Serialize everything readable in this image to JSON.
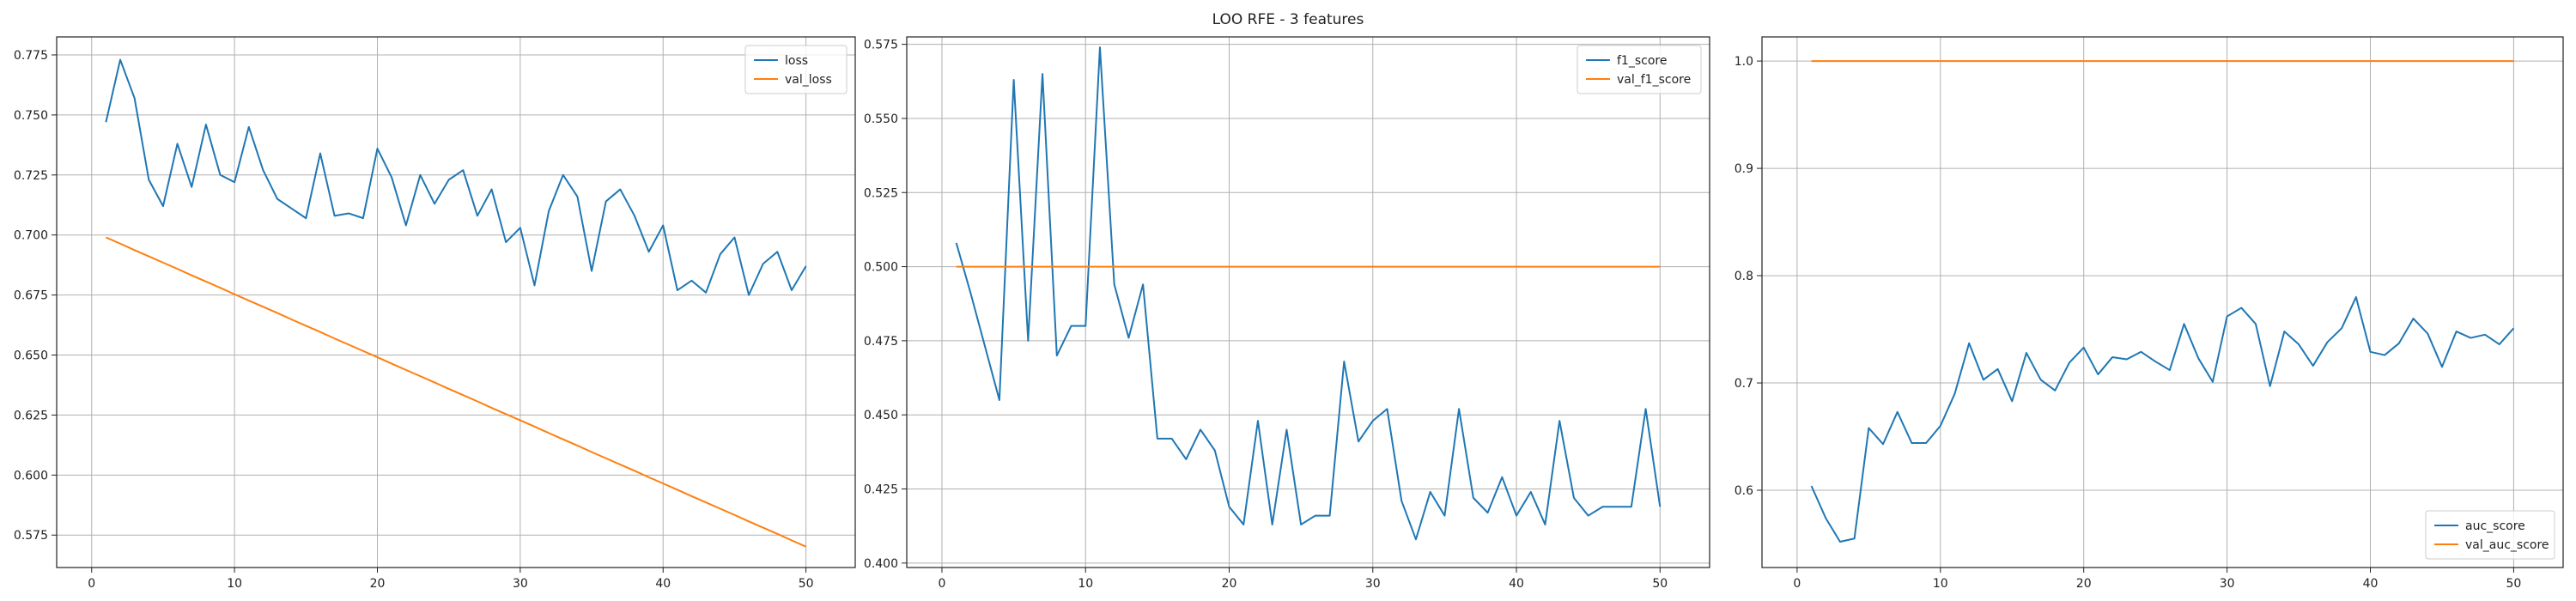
{
  "figure": {
    "title": "LOO RFE - 3 features"
  },
  "colors": {
    "train": "#1f77b4",
    "val": "#ff7f0e",
    "grid": "#b0b0b0",
    "axes": "#222222"
  },
  "chart_data": [
    {
      "type": "line",
      "grid": true,
      "legend_position": "top-right",
      "xlim": [
        -2.45,
        53.45
      ],
      "ylim": [
        0.5615,
        0.7825
      ],
      "xticks": [
        0,
        10,
        20,
        30,
        40,
        50
      ],
      "yticks": [
        0.575,
        0.6,
        0.625,
        0.65,
        0.675,
        0.7,
        0.725,
        0.75,
        0.775
      ],
      "ytick_labels": [
        "0.575",
        "0.600",
        "0.625",
        "0.650",
        "0.675",
        "0.700",
        "0.725",
        "0.750",
        "0.775"
      ],
      "series": [
        {
          "name": "loss",
          "color_key": "train",
          "x": [
            1,
            2,
            3,
            4,
            5,
            6,
            7,
            8,
            9,
            10,
            11,
            12,
            13,
            14,
            15,
            16,
            17,
            18,
            19,
            20,
            21,
            22,
            23,
            24,
            25,
            26,
            27,
            28,
            29,
            30,
            31,
            32,
            33,
            34,
            35,
            36,
            37,
            38,
            39,
            40,
            41,
            42,
            43,
            44,
            45,
            46,
            47,
            48,
            49,
            50
          ],
          "values": [
            0.747,
            0.773,
            0.757,
            0.723,
            0.712,
            0.738,
            0.72,
            0.746,
            0.725,
            0.722,
            0.745,
            0.727,
            0.715,
            0.711,
            0.707,
            0.734,
            0.708,
            0.709,
            0.707,
            0.736,
            0.724,
            0.704,
            0.725,
            0.713,
            0.723,
            0.727,
            0.708,
            0.719,
            0.697,
            0.703,
            0.679,
            0.71,
            0.725,
            0.716,
            0.685,
            0.714,
            0.719,
            0.708,
            0.693,
            0.704,
            0.677,
            0.681,
            0.676,
            0.692,
            0.699,
            0.675,
            0.688,
            0.693,
            0.677,
            0.687
          ]
        },
        {
          "name": "val_loss",
          "color_key": "val",
          "x": [
            1,
            2,
            3,
            4,
            5,
            6,
            7,
            8,
            9,
            10,
            11,
            12,
            13,
            14,
            15,
            16,
            17,
            18,
            19,
            20,
            21,
            22,
            23,
            24,
            25,
            26,
            27,
            28,
            29,
            30,
            31,
            32,
            33,
            34,
            35,
            36,
            37,
            38,
            39,
            40,
            41,
            42,
            43,
            44,
            45,
            46,
            47,
            48,
            49,
            50
          ],
          "values": [
            0.699,
            0.6964,
            0.6937,
            0.6911,
            0.6885,
            0.6859,
            0.6832,
            0.6806,
            0.678,
            0.6753,
            0.6727,
            0.6701,
            0.6675,
            0.6648,
            0.6622,
            0.6596,
            0.6569,
            0.6543,
            0.6517,
            0.6491,
            0.6464,
            0.6438,
            0.6412,
            0.6386,
            0.6359,
            0.6333,
            0.6307,
            0.628,
            0.6254,
            0.6228,
            0.6202,
            0.6175,
            0.6149,
            0.6123,
            0.6096,
            0.607,
            0.6044,
            0.6018,
            0.5991,
            0.5965,
            0.5939,
            0.5912,
            0.5886,
            0.586,
            0.5834,
            0.5807,
            0.5781,
            0.5755,
            0.5728,
            0.5702
          ]
        }
      ]
    },
    {
      "type": "line",
      "grid": true,
      "legend_position": "top-right",
      "xlim": [
        -2.45,
        53.45
      ],
      "ylim": [
        0.3985,
        0.5775
      ],
      "xticks": [
        0,
        10,
        20,
        30,
        40,
        50
      ],
      "yticks": [
        0.4,
        0.425,
        0.45,
        0.475,
        0.5,
        0.525,
        0.55,
        0.575
      ],
      "ytick_labels": [
        "0.400",
        "0.425",
        "0.450",
        "0.475",
        "0.500",
        "0.525",
        "0.550",
        "0.575"
      ],
      "series": [
        {
          "name": "f1_score",
          "color_key": "train",
          "x": [
            1,
            2,
            3,
            4,
            5,
            6,
            7,
            8,
            9,
            10,
            11,
            12,
            13,
            14,
            15,
            16,
            17,
            18,
            19,
            20,
            21,
            22,
            23,
            24,
            25,
            26,
            27,
            28,
            29,
            30,
            31,
            32,
            33,
            34,
            35,
            36,
            37,
            38,
            39,
            40,
            41,
            42,
            43,
            44,
            45,
            46,
            47,
            48,
            49,
            50
          ],
          "values": [
            0.508,
            0.491,
            0.473,
            0.455,
            0.563,
            0.475,
            0.565,
            0.47,
            0.48,
            0.48,
            0.574,
            0.494,
            0.476,
            0.494,
            0.442,
            0.442,
            0.435,
            0.445,
            0.438,
            0.419,
            0.413,
            0.448,
            0.413,
            0.445,
            0.413,
            0.416,
            0.416,
            0.468,
            0.441,
            0.448,
            0.452,
            0.421,
            0.408,
            0.424,
            0.416,
            0.452,
            0.422,
            0.417,
            0.429,
            0.416,
            0.424,
            0.413,
            0.448,
            0.422,
            0.416,
            0.419,
            0.419,
            0.419,
            0.452,
            0.419
          ]
        },
        {
          "name": "val_f1_score",
          "color_key": "val",
          "x": [
            1,
            50
          ],
          "values": [
            0.5,
            0.5
          ]
        }
      ]
    },
    {
      "type": "line",
      "grid": true,
      "legend_position": "bottom-right",
      "xlim": [
        -2.45,
        53.45
      ],
      "ylim": [
        0.528,
        1.0225
      ],
      "xticks": [
        0,
        10,
        20,
        30,
        40,
        50
      ],
      "yticks": [
        0.6,
        0.7,
        0.8,
        0.9,
        1.0
      ],
      "ytick_labels": [
        "0.6",
        "0.7",
        "0.8",
        "0.9",
        "1.0"
      ],
      "series": [
        {
          "name": "auc_score",
          "color_key": "train",
          "x": [
            1,
            2,
            3,
            4,
            5,
            6,
            7,
            8,
            9,
            10,
            11,
            12,
            13,
            14,
            15,
            16,
            17,
            18,
            19,
            20,
            21,
            22,
            23,
            24,
            25,
            26,
            27,
            28,
            29,
            30,
            31,
            32,
            33,
            34,
            35,
            36,
            37,
            38,
            39,
            40,
            41,
            42,
            43,
            44,
            45,
            46,
            47,
            48,
            49,
            50
          ],
          "values": [
            0.604,
            0.574,
            0.552,
            0.555,
            0.658,
            0.643,
            0.673,
            0.644,
            0.644,
            0.66,
            0.69,
            0.737,
            0.703,
            0.713,
            0.683,
            0.728,
            0.703,
            0.693,
            0.719,
            0.733,
            0.708,
            0.724,
            0.722,
            0.729,
            0.72,
            0.712,
            0.755,
            0.723,
            0.701,
            0.762,
            0.77,
            0.755,
            0.697,
            0.748,
            0.736,
            0.716,
            0.738,
            0.751,
            0.78,
            0.729,
            0.726,
            0.737,
            0.76,
            0.746,
            0.715,
            0.748,
            0.742,
            0.745,
            0.736,
            0.751
          ]
        },
        {
          "name": "val_auc_score",
          "color_key": "val",
          "x": [
            1,
            50
          ],
          "values": [
            1.0,
            1.0
          ]
        }
      ]
    }
  ]
}
